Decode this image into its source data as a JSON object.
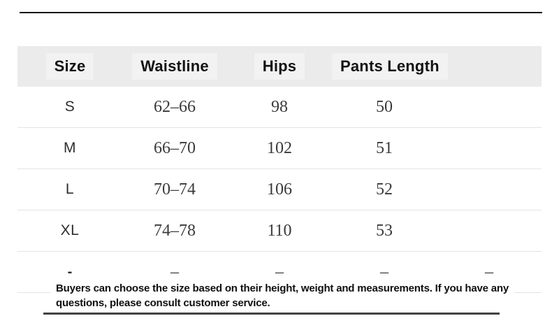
{
  "table": {
    "headers": [
      "Size",
      "Waistline",
      "Hips",
      "Pants Length",
      ""
    ],
    "rows": [
      {
        "size": "S",
        "waistline": "62–66",
        "hips": "98",
        "pants_length": "50",
        "col5": ""
      },
      {
        "size": "M",
        "waistline": "66–70",
        "hips": "102",
        "pants_length": "51",
        "col5": ""
      },
      {
        "size": "L",
        "waistline": "70–74",
        "hips": "106",
        "pants_length": "52",
        "col5": ""
      },
      {
        "size": "XL",
        "waistline": "74–78",
        "hips": "110",
        "pants_length": "53",
        "col5": ""
      },
      {
        "size": "-",
        "waistline": "–",
        "hips": "–",
        "pants_length": "–",
        "col5": "–"
      }
    ]
  },
  "footer": {
    "note_line1": "Buyers can choose the size based on their height, weight and measurements. If you have any",
    "note_line2": "questions, please consult customer service."
  },
  "colors": {
    "header_bg": "#ebebeb",
    "row_divider": "#e4e4e4",
    "header_text": "#131313",
    "body_text": "#3a3a3a",
    "top_rule": "#151515",
    "bottom_rule": "#424242"
  }
}
